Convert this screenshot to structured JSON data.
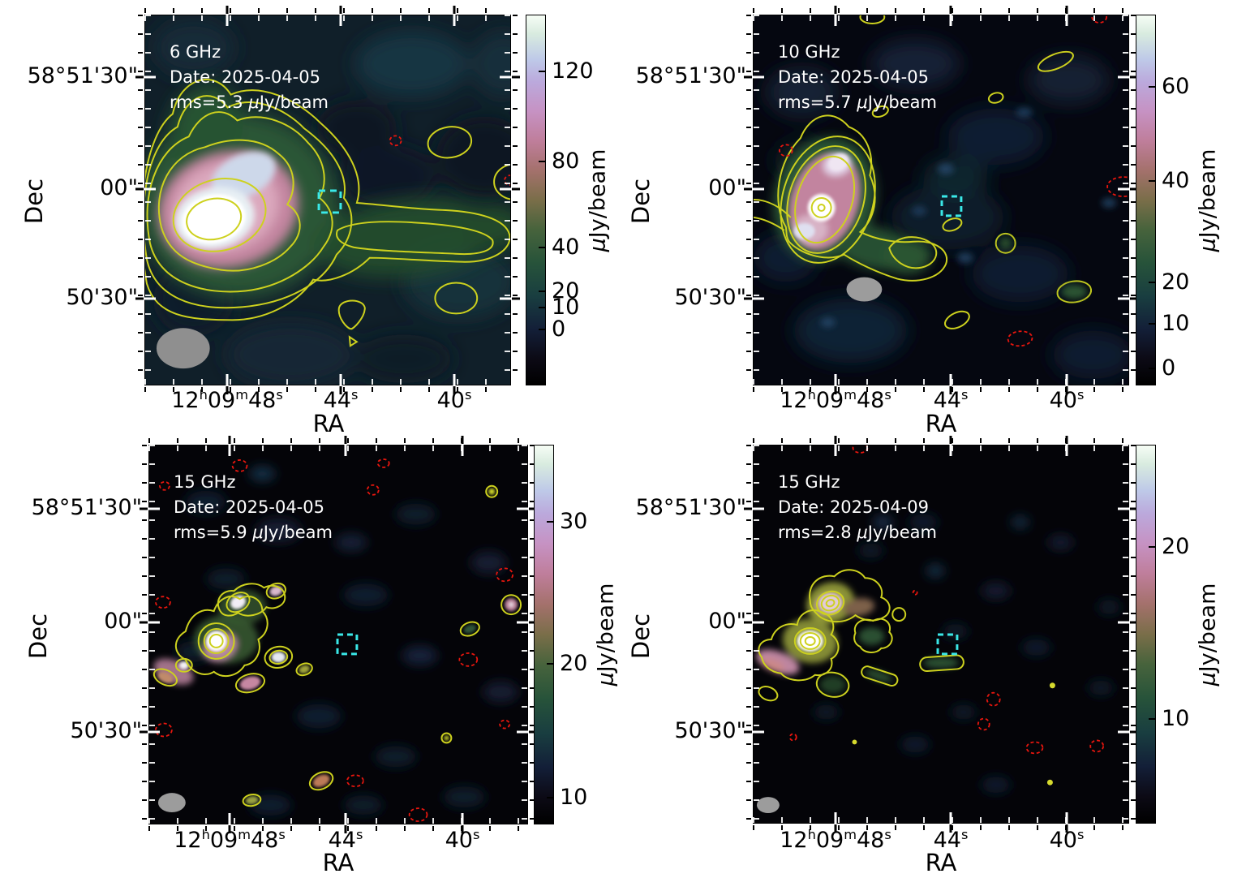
{
  "colors": {
    "contour_positive": "#cdd11e",
    "contour_negative": "#e8160e",
    "region_box": "#3ae8e8",
    "beam_ellipse": "#919191",
    "annotation_text": "#ffffff",
    "axis_text": "#000000",
    "colormap": "dark cubehelix-like (black - teal green - pink - white)"
  },
  "axes": {
    "x_label": "RA",
    "y_label": "Dec",
    "x_tick_0": {
      "a": "12",
      "sa": "h",
      "b": "09",
      "sb": "m",
      "c": "48",
      "sc": "s"
    },
    "x_tick_1": {
      "c": "44",
      "sc": "s"
    },
    "x_tick_2": {
      "c": "40",
      "sc": "s"
    },
    "y_tick_0": "58°51'30\"",
    "y_tick_1": "00\"",
    "y_tick_2": "50'30\""
  },
  "panels": [
    {
      "freq": "6 GHz",
      "date": "Date: 2025-04-05",
      "rms_pre": "rms=5.3 ",
      "mu": "μ",
      "unit": "Jy/beam",
      "cb": {
        "mu": "μ",
        "unit": "Jy/beam",
        "t0": "120",
        "t1": "80",
        "t2": "40",
        "t3": "20",
        "t4": "10",
        "t5": "0"
      }
    },
    {
      "freq": "10 GHz",
      "date": "Date: 2025-04-05",
      "rms_pre": "rms=5.7 ",
      "mu": "μ",
      "unit": "Jy/beam",
      "cb": {
        "mu": "μ",
        "unit": "Jy/beam",
        "t0": "60",
        "t1": "40",
        "t2": "20",
        "t3": "10",
        "t4": "0"
      }
    },
    {
      "freq": "15 GHz",
      "date": "Date: 2025-04-05",
      "rms_pre": "rms=5.9 ",
      "mu": "μ",
      "unit": "Jy/beam",
      "cb": {
        "mu": "μ",
        "unit": "Jy/beam",
        "t0": "30",
        "t1": "20",
        "t2": "10"
      }
    },
    {
      "freq": "15 GHz",
      "date": "Date: 2025-04-09",
      "rms_pre": "rms=2.8 ",
      "mu": "μ",
      "unit": "Jy/beam",
      "cb": {
        "mu": "μ",
        "unit": "Jy/beam",
        "t0": "20",
        "t1": "10"
      }
    }
  ],
  "chart_data": [
    {
      "type": "heatmap",
      "panel": "top-left",
      "title": "6 GHz",
      "date": "2025-04-05",
      "rms_uJy_per_beam": 5.3,
      "xlabel": "RA",
      "ylabel": "Dec",
      "x_tick_labels": [
        "12h09m48s",
        "44s",
        "40s"
      ],
      "y_tick_labels": [
        "58°51'30\"",
        "00\"",
        "50'30\""
      ],
      "colorbar_label": "μJy/beam",
      "colorbar_ticks": [
        0,
        10,
        20,
        40,
        80,
        120
      ],
      "features": [
        "bright extended source east (left) with white peak and pink halo",
        "faint tail extending west across centre",
        "yellow positive contours",
        "small red dashed negative contours",
        "cyan dashed square right of centre",
        "grey beam ellipse lower-left"
      ]
    },
    {
      "type": "heatmap",
      "panel": "top-right",
      "title": "10 GHz",
      "date": "2025-04-05",
      "rms_uJy_per_beam": 5.7,
      "xlabel": "RA",
      "ylabel": "Dec",
      "x_tick_labels": [
        "12h09m48s",
        "44s",
        "40s"
      ],
      "y_tick_labels": [
        "58°51'30\"",
        "00\"",
        "50'30\""
      ],
      "colorbar_label": "μJy/beam",
      "colorbar_ticks": [
        0,
        10,
        20,
        40,
        60
      ],
      "features": [
        "compact bright core with pink halo upper-left",
        "short green contoured extension to south-east",
        "several small contoured knots",
        "red dashed negative contours",
        "cyan dashed square at centre-left",
        "grey beam ellipse"
      ]
    },
    {
      "type": "heatmap",
      "panel": "bottom-left",
      "title": "15 GHz",
      "date": "2025-04-05",
      "rms_uJy_per_beam": 5.9,
      "xlabel": "RA",
      "ylabel": "Dec",
      "x_tick_labels": [
        "12h09m48s",
        "44s",
        "40s"
      ],
      "y_tick_labels": [
        "58°51'30\"",
        "00\"",
        "50'30\""
      ],
      "colorbar_label": "μJy/beam",
      "colorbar_ticks": [
        10,
        20,
        30
      ],
      "features": [
        "chain of compact knots with contours left of centre",
        "many faint noise blobs and scattered contoured points",
        "red dashed negative contours",
        "cyan dashed square",
        "small grey beam ellipse lower-left"
      ]
    },
    {
      "type": "heatmap",
      "panel": "bottom-right",
      "title": "15 GHz",
      "date": "2025-04-09",
      "rms_uJy_per_beam": 2.8,
      "xlabel": "RA",
      "ylabel": "Dec",
      "x_tick_labels": [
        "12h09m48s",
        "44s",
        "40s"
      ],
      "y_tick_labels": [
        "58°51'30\"",
        "00\"",
        "50'30\""
      ],
      "colorbar_label": "μJy/beam",
      "colorbar_ticks": [
        10,
        20
      ],
      "features": [
        "two bright multi-ring compact sources upper-left with pink tail",
        "green contoured bars toward centre",
        "red dashed negative contours",
        "cyan dashed square",
        "small grey beam ellipse lower-left"
      ]
    }
  ]
}
